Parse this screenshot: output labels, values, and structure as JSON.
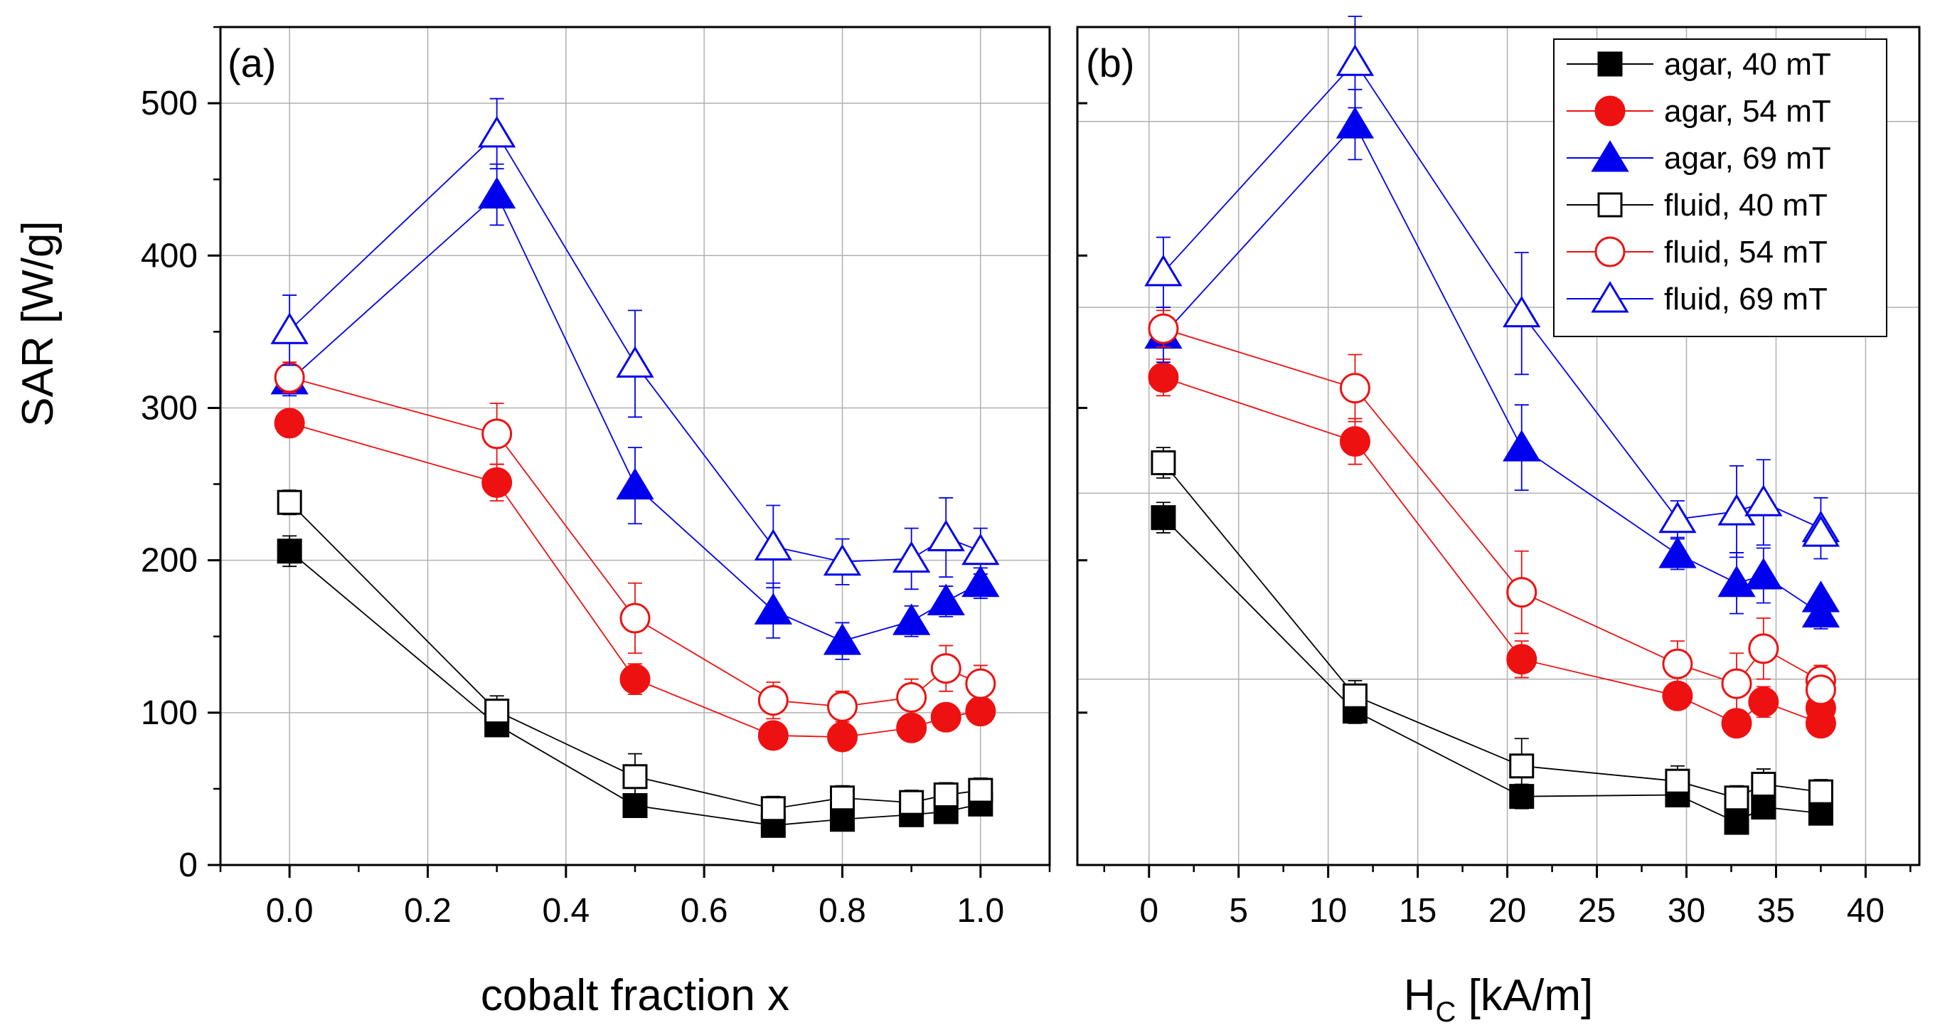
{
  "figure": {
    "y_axis_label": "SAR [W/g]",
    "legend": [
      {
        "label": "agar, 40 mT",
        "color": "#000000",
        "marker": "square",
        "filled": true
      },
      {
        "label": "agar, 54 mT",
        "color": "#ee1111",
        "marker": "circle",
        "filled": true
      },
      {
        "label": "agar, 69 mT",
        "color": "#0000ee",
        "marker": "triangle",
        "filled": true
      },
      {
        "label": "fluid, 40 mT",
        "color": "#000000",
        "marker": "square",
        "filled": false
      },
      {
        "label": "fluid, 54 mT",
        "color": "#ee1111",
        "marker": "circle",
        "filled": false
      },
      {
        "label": "fluid, 69 mT",
        "color": "#0000ee",
        "marker": "triangle",
        "filled": false
      }
    ]
  },
  "chart_data": [
    {
      "type": "scatter",
      "panel": "(a)",
      "xlabel": "cobalt fraction x",
      "ylabel": "SAR [W/g]",
      "xlim": [
        -0.1,
        1.1
      ],
      "ylim": [
        0,
        550
      ],
      "xticks": [
        "0.0",
        "0.2",
        "0.4",
        "0.6",
        "0.8",
        "1.0"
      ],
      "yticks": [
        "0",
        "100",
        "200",
        "300",
        "400",
        "500"
      ],
      "grid": true,
      "series": [
        {
          "name": "agar, 40 mT",
          "x": [
            0,
            0.3,
            0.5,
            0.7,
            0.8,
            0.9,
            0.95,
            1.0
          ],
          "y": [
            206,
            92,
            39,
            26,
            30,
            33,
            35,
            40
          ],
          "err": [
            10,
            6,
            5,
            4,
            4,
            4,
            4,
            5
          ]
        },
        {
          "name": "agar, 54 mT",
          "x": [
            0,
            0.3,
            0.5,
            0.7,
            0.8,
            0.9,
            0.95,
            1.0
          ],
          "y": [
            290,
            251,
            122,
            85,
            84,
            90,
            97,
            101
          ],
          "err": [
            8,
            12,
            10,
            6,
            6,
            6,
            7,
            8
          ]
        },
        {
          "name": "agar, 69 mT",
          "x": [
            0,
            0.3,
            0.5,
            0.7,
            0.8,
            0.9,
            0.95,
            1.0
          ],
          "y": [
            318,
            440,
            249,
            167,
            147,
            160,
            173,
            185
          ],
          "err": [
            10,
            20,
            25,
            18,
            12,
            10,
            10,
            10
          ]
        },
        {
          "name": "fluid, 40 mT",
          "x": [
            0,
            0.3,
            0.5,
            0.7,
            0.8,
            0.9,
            0.95,
            1.0
          ],
          "y": [
            238,
            101,
            58,
            37,
            44,
            41,
            46,
            49
          ],
          "err": [
            8,
            10,
            15,
            8,
            8,
            8,
            8,
            8
          ]
        },
        {
          "name": "fluid, 54 mT",
          "x": [
            0,
            0.3,
            0.5,
            0.7,
            0.8,
            0.9,
            0.95,
            1.0
          ],
          "y": [
            320,
            283,
            162,
            108,
            104,
            110,
            129,
            119
          ],
          "err": [
            10,
            20,
            23,
            12,
            10,
            12,
            15,
            12
          ]
        },
        {
          "name": "fluid, 69 mT",
          "x": [
            0,
            0.3,
            0.5,
            0.7,
            0.8,
            0.9,
            0.95,
            1.0
          ],
          "y": [
            351,
            480,
            329,
            209,
            199,
            201,
            215,
            206
          ],
          "err": [
            23,
            23,
            35,
            27,
            15,
            20,
            26,
            15
          ]
        }
      ]
    },
    {
      "type": "scatter",
      "panel": "(b)",
      "xlabel": "H",
      "xlabel_sub": "C",
      "xlabel_unit": " [kA/m]",
      "ylabel": "",
      "xlim": [
        -4,
        43
      ],
      "ylim": [
        0,
        550
      ],
      "xticks": [
        "0",
        "5",
        "10",
        "15",
        "20",
        "25",
        "30",
        "35",
        "40"
      ],
      "grid": true,
      "series": [
        {
          "name": "agar, 40 mT",
          "x": [
            0.8,
            11.5,
            20.8,
            29.5,
            32.8,
            34.3,
            37.5
          ],
          "y": [
            228,
            101,
            45,
            46,
            28,
            38,
            34
          ],
          "err": [
            10,
            8,
            8,
            6,
            6,
            6,
            6
          ]
        },
        {
          "name": "agar, 54 mT",
          "x": [
            0.8,
            11.5,
            20.8,
            29.5,
            32.8,
            34.3,
            37.5
          ],
          "y": [
            320,
            278,
            135,
            111,
            93,
            107,
            93
          ],
          "err": [
            12,
            15,
            12,
            8,
            8,
            10,
            8
          ]
        },
        {
          "name": "agar, 69 mT",
          "x": [
            0.8,
            11.5,
            20.8,
            29.5,
            32.8,
            34.3,
            37.5
          ],
          "y": [
            348,
            486,
            274,
            204,
            185,
            190,
            165
          ],
          "err": [
            18,
            23,
            28,
            10,
            20,
            18,
            10
          ]
        },
        {
          "name": "fluid, 40 mT",
          "x": [
            0.8,
            11.5,
            20.8,
            29.5,
            32.8,
            34.3,
            37.5
          ],
          "y": [
            264,
            111,
            65,
            55,
            44,
            53,
            48
          ],
          "err": [
            10,
            10,
            18,
            10,
            8,
            10,
            8
          ]
        },
        {
          "name": "fluid, 54 mT",
          "x": [
            0.8,
            11.5,
            20.8,
            29.5,
            32.8,
            34.3,
            37.5
          ],
          "y": [
            352,
            313,
            179,
            132,
            119,
            142,
            121
          ],
          "err": [
            12,
            22,
            27,
            15,
            20,
            20,
            10
          ]
        },
        {
          "name": "fluid, 69 mT",
          "x": [
            0.8,
            11.5,
            20.8,
            29.5,
            32.8,
            34.3,
            37.5
          ],
          "y": [
            389,
            527,
            362,
            227,
            232,
            238,
            221
          ],
          "err": [
            23,
            30,
            40,
            12,
            30,
            28,
            20
          ]
        }
      ],
      "extra_points": [
        {
          "name": "agar, 69 mT",
          "x": 37.5,
          "y": 175
        },
        {
          "name": "agar, 54 mT",
          "x": 37.5,
          "y": 103
        },
        {
          "name": "fluid, 54 mT",
          "x": 37.5,
          "y": 115
        },
        {
          "name": "fluid, 69 mT",
          "x": 37.5,
          "y": 218
        }
      ]
    }
  ]
}
